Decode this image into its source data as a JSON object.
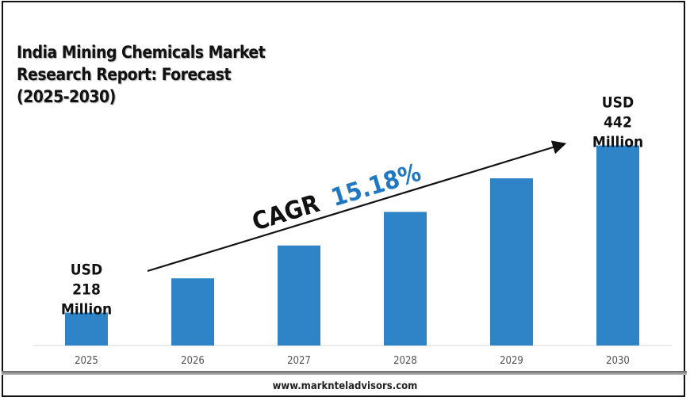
{
  "chart_data": {
    "type": "bar",
    "title": "India Mining Chemicals Market Research Report: Forecast (2025-2030)",
    "title_lines": [
      "India Mining Chemicals Market",
      "Research Report: Forecast",
      "(2025-2030)"
    ],
    "categories": [
      "2025",
      "2026",
      "2027",
      "2028",
      "2029",
      "2030"
    ],
    "values": [
      218,
      264,
      308,
      353,
      398,
      442
    ],
    "unit": "USD Million",
    "ylim": [
      174,
      450
    ],
    "grid": false,
    "bar_color": "#2e84c6",
    "data_labels": {
      "first": [
        "USD",
        "218",
        "Million"
      ],
      "last": [
        "USD",
        "442",
        "Million"
      ]
    },
    "annotation": {
      "prefix": "CAGR",
      "value": "15.18%",
      "value_color": "#1f78c1"
    }
  },
  "footer": {
    "website": "www.marknteladvisors.com"
  }
}
